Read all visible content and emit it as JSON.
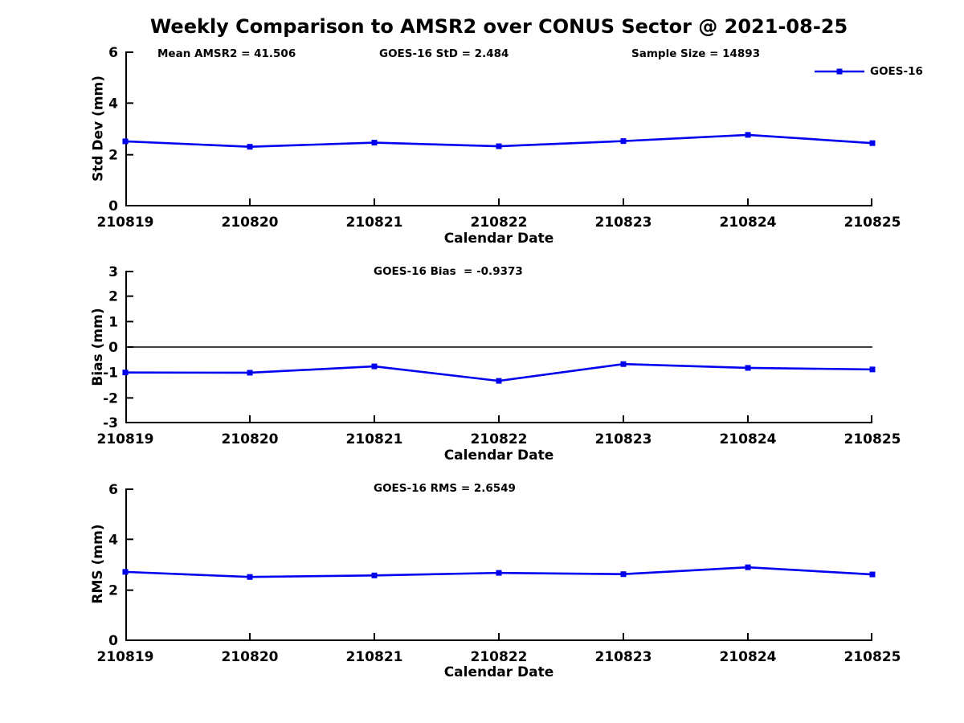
{
  "title": "Weekly Comparison to AMSR2 over CONUS Sector @ 2021-08-25",
  "legend": {
    "label": "GOES-16"
  },
  "colors": {
    "series": "#0000EE",
    "axis": "#000000",
    "text": "#000000",
    "background": "#FFFFFF"
  },
  "chart_data": [
    {
      "type": "line",
      "ylabel": "Std Dev (mm)",
      "xlabel": "Calendar Date",
      "ylim": [
        0,
        6
      ],
      "yticks": [
        0,
        2,
        4,
        6
      ],
      "categories": [
        "210819",
        "210820",
        "210821",
        "210822",
        "210823",
        "210824",
        "210825"
      ],
      "series": [
        {
          "name": "GOES-16",
          "values": [
            2.52,
            2.31,
            2.47,
            2.33,
            2.53,
            2.77,
            2.45
          ]
        }
      ],
      "annotations": [
        "Mean AMSR2 = 41.506",
        "GOES-16 StD = 2.484",
        "Sample Size = 14893"
      ],
      "legend_position": "top-right",
      "grid": false,
      "zero_line": false,
      "marker": "square"
    },
    {
      "type": "line",
      "ylabel": "Bias (mm)",
      "xlabel": "Calendar Date",
      "ylim": [
        -3,
        3
      ],
      "yticks": [
        -3,
        -2,
        -1,
        0,
        1,
        2,
        3
      ],
      "categories": [
        "210819",
        "210820",
        "210821",
        "210822",
        "210823",
        "210824",
        "210825"
      ],
      "series": [
        {
          "name": "GOES-16",
          "values": [
            -1.0,
            -1.01,
            -0.76,
            -1.33,
            -0.67,
            -0.82,
            -0.88
          ]
        }
      ],
      "annotations": [
        "GOES-16 Bias  = -0.9373"
      ],
      "legend_position": "none",
      "grid": false,
      "zero_line": true,
      "marker": "square"
    },
    {
      "type": "line",
      "ylabel": "RMS (mm)",
      "xlabel": "Calendar Date",
      "ylim": [
        0,
        6
      ],
      "yticks": [
        0,
        2,
        4,
        6
      ],
      "categories": [
        "210819",
        "210820",
        "210821",
        "210822",
        "210823",
        "210824",
        "210825"
      ],
      "series": [
        {
          "name": "GOES-16",
          "values": [
            2.72,
            2.52,
            2.58,
            2.68,
            2.63,
            2.9,
            2.62
          ]
        }
      ],
      "annotations": [
        "GOES-16 RMS = 2.6549"
      ],
      "legend_position": "none",
      "grid": false,
      "zero_line": false,
      "marker": "square"
    }
  ]
}
